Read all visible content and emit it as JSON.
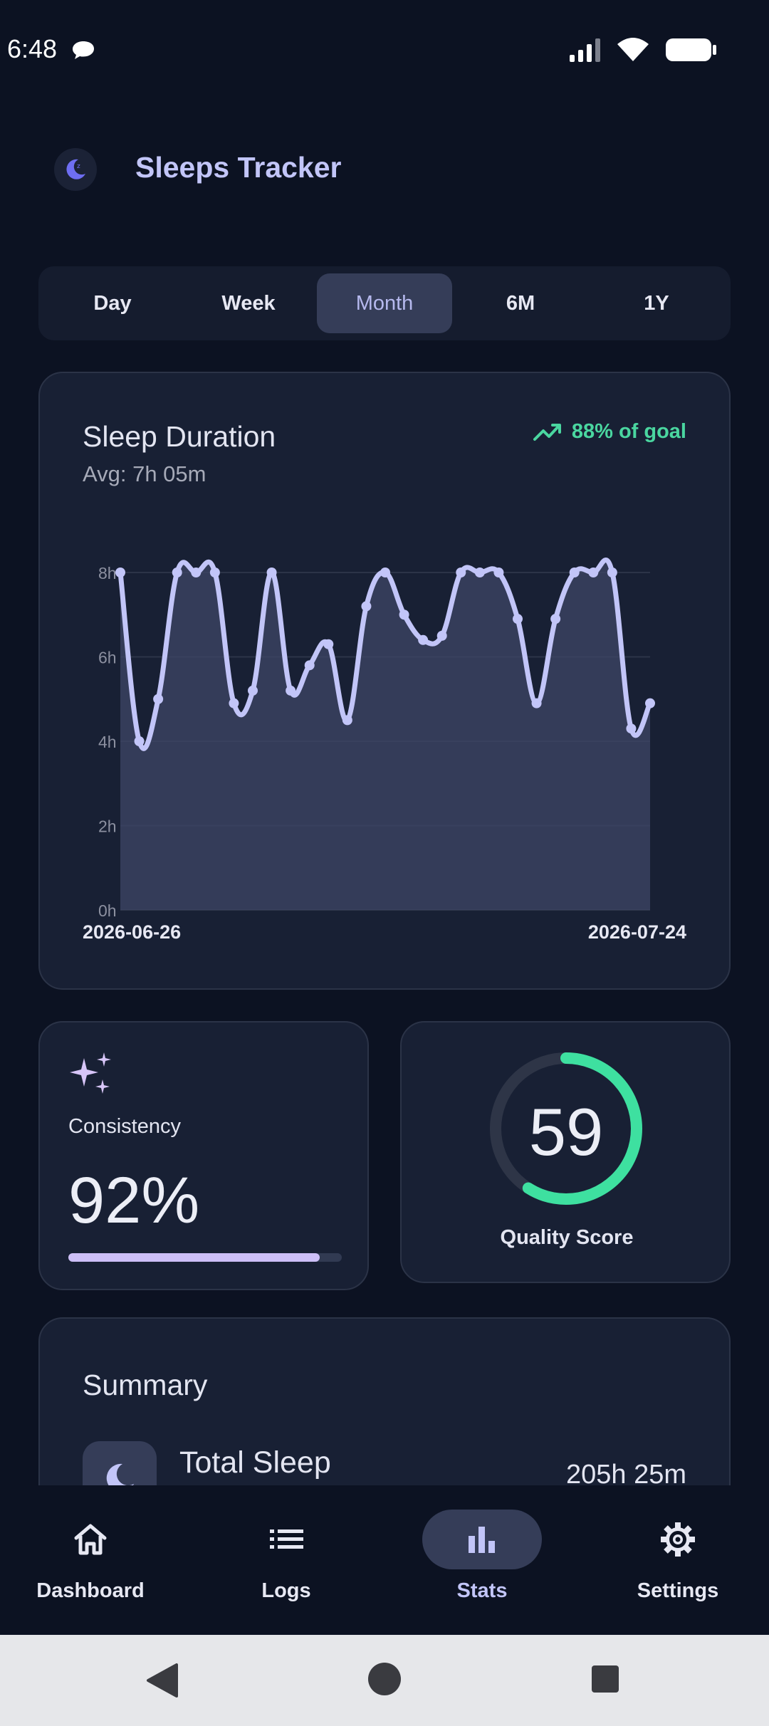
{
  "status_bar": {
    "time": "6:48"
  },
  "app": {
    "title": "Sleeps Tracker"
  },
  "range_tabs": [
    {
      "label": "Day"
    },
    {
      "label": "Week"
    },
    {
      "label": "Month",
      "active": true
    },
    {
      "label": "6M"
    },
    {
      "label": "1Y"
    }
  ],
  "sleep_duration": {
    "title": "Sleep Duration",
    "average": "Avg: 7h 05m",
    "goal_text": "88% of goal",
    "start_date": "2026-06-26",
    "end_date": "2026-07-24"
  },
  "chart_data": {
    "type": "area",
    "title": "Sleep Duration",
    "x": [
      "2026-06-26",
      "2026-06-27",
      "2026-06-28",
      "2026-06-29",
      "2026-06-30",
      "2026-07-01",
      "2026-07-02",
      "2026-07-03",
      "2026-07-04",
      "2026-07-05",
      "2026-07-06",
      "2026-07-07",
      "2026-07-08",
      "2026-07-09",
      "2026-07-10",
      "2026-07-11",
      "2026-07-12",
      "2026-07-13",
      "2026-07-14",
      "2026-07-15",
      "2026-07-16",
      "2026-07-17",
      "2026-07-18",
      "2026-07-19",
      "2026-07-20",
      "2026-07-21",
      "2026-07-22",
      "2026-07-23",
      "2026-07-24"
    ],
    "y_ticks": [
      "0h",
      "2h",
      "4h",
      "6h",
      "8h"
    ],
    "ylim": [
      0,
      8
    ],
    "grid": true,
    "series": [
      {
        "values": [
          8.0,
          4.0,
          5.0,
          8.0,
          8.0,
          8.0,
          4.9,
          5.2,
          8.0,
          5.2,
          5.8,
          6.3,
          4.5,
          7.2,
          8.0,
          7.0,
          6.4,
          6.5,
          8.0,
          8.0,
          8.0,
          6.9,
          4.9,
          6.9,
          8.0,
          8.0,
          8.0,
          4.3,
          4.9
        ]
      }
    ],
    "color": "#c2c5f8"
  },
  "consistency": {
    "label": "Consistency",
    "value": "92%",
    "progress": 0.92
  },
  "quality": {
    "value": "59",
    "label": "Quality Score",
    "fraction": 0.59
  },
  "summary": {
    "title": "Summary",
    "total_sleep_label": "Total Sleep",
    "total_sleep_value": "205h 25m"
  },
  "bottom_nav": [
    {
      "label": "Dashboard",
      "icon": "home-icon"
    },
    {
      "label": "Logs",
      "icon": "list-icon"
    },
    {
      "label": "Stats",
      "icon": "bar-chart-icon",
      "active": true
    },
    {
      "label": "Settings",
      "icon": "gear-icon"
    }
  ],
  "colors": {
    "background": "#0c1222",
    "card": "#182034",
    "accent": "#c2c5f8",
    "success": "#4ad6a0",
    "quality_ring": "#3ee0a0"
  }
}
